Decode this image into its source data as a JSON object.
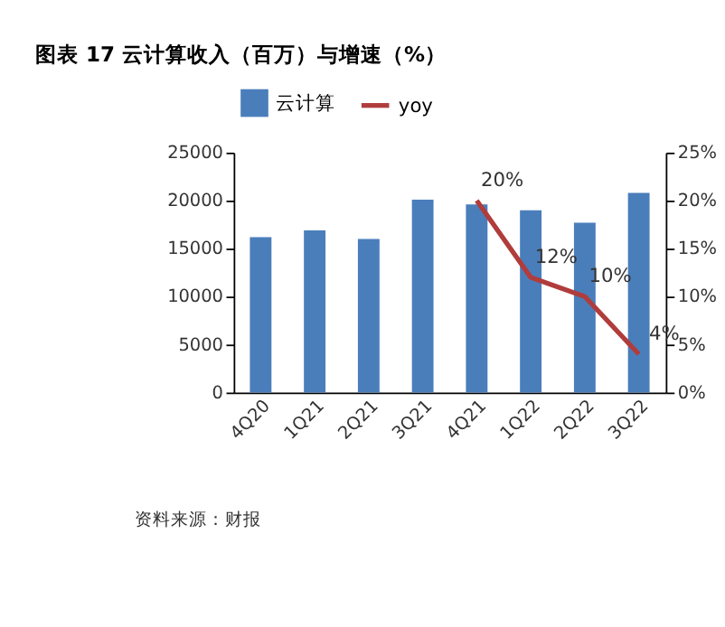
{
  "chart_data": {
    "type": "bar",
    "title": "图表 17 云计算收入（百万）与增速（%）",
    "categories": [
      "4Q20",
      "1Q21",
      "2Q21",
      "3Q21",
      "4Q21",
      "1Q22",
      "2Q22",
      "3Q22"
    ],
    "series": [
      {
        "name": "云计算",
        "color": "#4a7ebb",
        "values": [
          16200,
          16900,
          16000,
          20100,
          19600,
          19000,
          17700,
          20800
        ]
      },
      {
        "name": "yoy",
        "type": "line",
        "axis": "y2",
        "color": "#b03c3c",
        "values": [
          null,
          null,
          null,
          null,
          20,
          12,
          10,
          4
        ],
        "value_labels": [
          null,
          null,
          null,
          null,
          "20%",
          "12%",
          "10%",
          "4%"
        ]
      }
    ],
    "ylim": [
      0,
      25000
    ],
    "yticks": [
      0,
      5000,
      10000,
      15000,
      20000,
      25000
    ],
    "y2lim": [
      0,
      25
    ],
    "y2ticks": [
      {
        "value": 0,
        "label": "0%"
      },
      {
        "value": 5,
        "label": "5%"
      },
      {
        "value": 10,
        "label": "10%"
      },
      {
        "value": 15,
        "label": "15%"
      },
      {
        "value": 20,
        "label": "20%"
      },
      {
        "value": 25,
        "label": "25%"
      }
    ],
    "legend": "top",
    "grid": false,
    "annotations": [
      "资料来源：财报"
    ]
  }
}
